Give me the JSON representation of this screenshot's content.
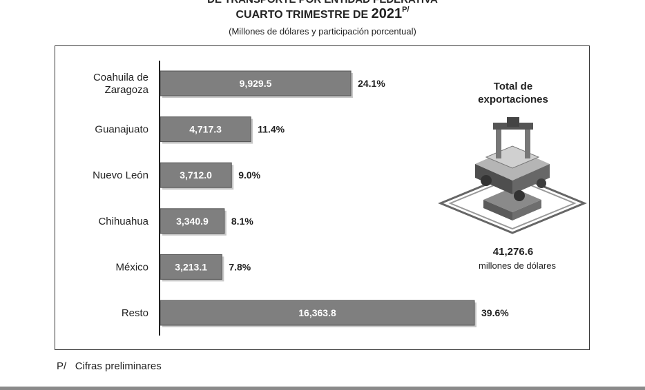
{
  "header": {
    "title_line1": "DE TRANSPORTE POR ENTIDAD FEDERATIVA",
    "title_line2_prefix": "CUARTO TRIMESTRE DE ",
    "title_line2_year": "2021",
    "title_line2_sup": "P/",
    "subtitle": "(Millones de dólares y participación porcentual)"
  },
  "chart_data": {
    "type": "bar",
    "orientation": "horizontal",
    "categories": [
      [
        "Coahuila de",
        "Zaragoza"
      ],
      [
        "Guanajuato"
      ],
      [
        "Nuevo León"
      ],
      [
        "Chihuahua"
      ],
      [
        "México"
      ],
      [
        "Resto"
      ]
    ],
    "value_labels": [
      "9,929.5",
      "4,717.3",
      "3,712.0",
      "3,340.9",
      "3,213.1",
      "16,363.8"
    ],
    "values": [
      9929.5,
      4717.3,
      3712.0,
      3340.9,
      3213.1,
      16363.8
    ],
    "shares": [
      "24.1%",
      "11.4%",
      "9.0%",
      "8.1%",
      "7.8%",
      "39.6%"
    ],
    "bar_color": "#7f7f7f",
    "xlim": [
      0,
      16363.8
    ]
  },
  "total_box": {
    "title_line1": "Total de",
    "title_line2": "exportaciones",
    "value": "41,276.6",
    "unit": "millones de dólares",
    "icon": "vehicle-assembly-icon"
  },
  "footnote": {
    "mark": "P/",
    "text": "Cifras preliminares"
  }
}
